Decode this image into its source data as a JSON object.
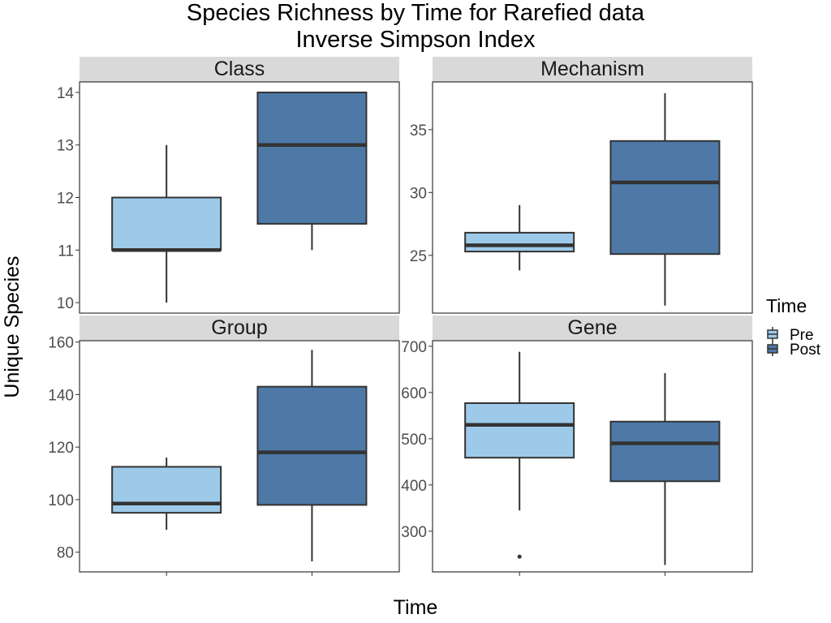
{
  "chart_data": {
    "type": "boxplot",
    "title": "Species Richness by Time for Rarefied data",
    "subtitle": "Inverse Simpson Index",
    "xlabel": "Time",
    "ylabel": "Unique Species",
    "legend": {
      "title": "Time",
      "position": "right",
      "entries": [
        {
          "label": "Pre",
          "color": "#9ECAE9"
        },
        {
          "label": "Post",
          "color": "#4E79A7"
        }
      ]
    },
    "grid": false,
    "colors": {
      "Pre": "#9ECAE9",
      "Post": "#4E79A7",
      "strip": "#D9D9D9",
      "outline": "#333333"
    },
    "panels": [
      {
        "name": "Class",
        "yticks": [
          10,
          11,
          12,
          13,
          14
        ],
        "ylim": [
          9.8,
          14.2
        ],
        "boxes": [
          {
            "group": "Pre",
            "min": 10,
            "q1": 11,
            "median": 11,
            "q3": 12,
            "max": 13,
            "outliers": []
          },
          {
            "group": "Post",
            "min": 11,
            "q1": 11.5,
            "median": 13,
            "q3": 14,
            "max": 14,
            "outliers": []
          }
        ]
      },
      {
        "name": "Mechanism",
        "yticks": [
          25,
          30,
          35
        ],
        "ylim": [
          20.4,
          38.8
        ],
        "boxes": [
          {
            "group": "Pre",
            "min": 23.8,
            "q1": 25.3,
            "median": 25.8,
            "q3": 26.8,
            "max": 29,
            "outliers": []
          },
          {
            "group": "Post",
            "min": 21,
            "q1": 25.1,
            "median": 30.8,
            "q3": 34.1,
            "max": 37.9,
            "outliers": []
          }
        ]
      },
      {
        "name": "Group",
        "yticks": [
          80,
          100,
          120,
          140,
          160
        ],
        "ylim": [
          72.5,
          160.5
        ],
        "boxes": [
          {
            "group": "Pre",
            "min": 88.5,
            "q1": 95,
            "median": 98.5,
            "q3": 112.5,
            "max": 116,
            "outliers": []
          },
          {
            "group": "Post",
            "min": 76.5,
            "q1": 98,
            "median": 118,
            "q3": 143,
            "max": 157,
            "outliers": []
          }
        ]
      },
      {
        "name": "Gene",
        "yticks": [
          300,
          400,
          500,
          600,
          700
        ],
        "ylim": [
          212,
          712
        ],
        "boxes": [
          {
            "group": "Pre",
            "min": 345,
            "q1": 459,
            "median": 530,
            "q3": 577,
            "max": 688,
            "outliers": [
              245
            ]
          },
          {
            "group": "Post",
            "min": 227,
            "q1": 408,
            "median": 490,
            "q3": 537,
            "max": 642,
            "outliers": []
          }
        ]
      }
    ]
  }
}
